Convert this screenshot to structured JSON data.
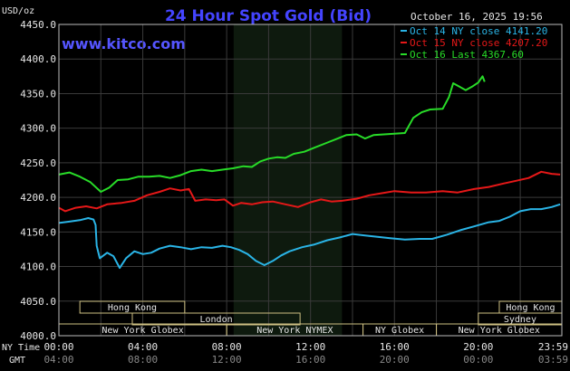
{
  "colors": {
    "background": "#000000",
    "title": "#4444ff",
    "site": "#5555ff",
    "text": "#e6e6e6",
    "grid": "#3a3a3a",
    "nymex_shade": "#0e1a0e",
    "session_fill": "#cdbf82",
    "session_text": "#000000",
    "oct14": "#2ab4e6",
    "oct15": "#e61818",
    "oct16": "#28dc28"
  },
  "chart_data": {
    "type": "line",
    "title": "24 Hour Spot Gold (Bid)",
    "site": "www.kitco.com",
    "timestamp": "October 16, 2025 19:56",
    "ylabel": "USD/oz",
    "ylim": [
      4000,
      4450
    ],
    "y_ticks": [
      "4450.0",
      "4400.0",
      "4350.0",
      "4300.0",
      "4250.0",
      "4200.0",
      "4150.0",
      "4100.0",
      "4050.0",
      "4000.0"
    ],
    "x_row_ny_label": "NY Time",
    "x_row_gmt_label": "GMT",
    "x_ticks_ny": [
      "00:00",
      "04:00",
      "08:00",
      "12:00",
      "16:00",
      "20:00",
      "23:59"
    ],
    "x_ticks_gmt": [
      "04:00",
      "08:00",
      "12:00",
      "16:00",
      "20:00",
      "00:00",
      "03:59"
    ],
    "x_tick_hours": [
      0,
      4,
      8,
      12,
      16,
      20,
      23.983
    ],
    "grid": true,
    "legend_position": "top-right",
    "nymex_band": [
      8.333,
      13.5
    ],
    "sessions": [
      {
        "label": "Hong Kong",
        "start": 1.0,
        "end": 6.0,
        "row": 0
      },
      {
        "label": "Hong Kong",
        "start": 21.0,
        "end": 24.0,
        "row": 0
      },
      {
        "label": "London",
        "start": 3.5,
        "end": 11.5,
        "row": 1
      },
      {
        "label": "Sydney",
        "start": 20.0,
        "end": 24.0,
        "row": 1
      },
      {
        "label": "New York Globex",
        "start": 0.0,
        "end": 8.0,
        "row": 2
      },
      {
        "label": "New York NYMEX",
        "start": 8.0,
        "end": 14.5,
        "row": 2
      },
      {
        "label": "NY Globex",
        "start": 14.5,
        "end": 18.0,
        "row": 2
      },
      {
        "label": "New York Globex",
        "start": 18.0,
        "end": 24.0,
        "row": 2
      }
    ],
    "series": [
      {
        "name": "Oct 14 NY close 4141.20",
        "color_key": "oct14",
        "points": [
          [
            0,
            4163
          ],
          [
            0.5,
            4165
          ],
          [
            1,
            4167
          ],
          [
            1.4,
            4170
          ],
          [
            1.65,
            4168
          ],
          [
            1.75,
            4160
          ],
          [
            1.8,
            4130
          ],
          [
            1.95,
            4112
          ],
          [
            2.3,
            4120
          ],
          [
            2.6,
            4115
          ],
          [
            2.9,
            4098
          ],
          [
            3.2,
            4112
          ],
          [
            3.6,
            4122
          ],
          [
            4,
            4118
          ],
          [
            4.4,
            4120
          ],
          [
            4.8,
            4126
          ],
          [
            5.3,
            4130
          ],
          [
            5.8,
            4128
          ],
          [
            6.3,
            4125
          ],
          [
            6.8,
            4128
          ],
          [
            7.3,
            4127
          ],
          [
            7.8,
            4130
          ],
          [
            8.2,
            4128
          ],
          [
            8.6,
            4124
          ],
          [
            9,
            4118
          ],
          [
            9.4,
            4108
          ],
          [
            9.8,
            4102
          ],
          [
            10.2,
            4108
          ],
          [
            10.6,
            4116
          ],
          [
            11,
            4122
          ],
          [
            11.6,
            4128
          ],
          [
            12.2,
            4132
          ],
          [
            12.8,
            4138
          ],
          [
            13.4,
            4142
          ],
          [
            14,
            4147
          ],
          [
            14.6,
            4145
          ],
          [
            15.2,
            4143
          ],
          [
            15.8,
            4141
          ],
          [
            16.5,
            4139
          ],
          [
            17.2,
            4140
          ],
          [
            17.8,
            4140
          ],
          [
            18.5,
            4146
          ],
          [
            19.2,
            4153
          ],
          [
            19.8,
            4158
          ],
          [
            20.5,
            4164
          ],
          [
            21,
            4166
          ],
          [
            21.5,
            4172
          ],
          [
            22,
            4180
          ],
          [
            22.5,
            4183
          ],
          [
            23,
            4183
          ],
          [
            23.5,
            4186
          ],
          [
            23.9,
            4190
          ]
        ]
      },
      {
        "name": "Oct 15 NY close 4207.20",
        "color_key": "oct15",
        "points": [
          [
            0,
            4185
          ],
          [
            0.3,
            4180
          ],
          [
            0.8,
            4185
          ],
          [
            1.3,
            4187
          ],
          [
            1.8,
            4184
          ],
          [
            2.3,
            4190
          ],
          [
            3,
            4192
          ],
          [
            3.6,
            4195
          ],
          [
            4.2,
            4203
          ],
          [
            4.8,
            4208
          ],
          [
            5.3,
            4213
          ],
          [
            5.8,
            4210
          ],
          [
            6.2,
            4212
          ],
          [
            6.5,
            4195
          ],
          [
            7,
            4197
          ],
          [
            7.5,
            4196
          ],
          [
            7.9,
            4197
          ],
          [
            8.3,
            4188
          ],
          [
            8.7,
            4192
          ],
          [
            9.2,
            4190
          ],
          [
            9.7,
            4193
          ],
          [
            10.2,
            4194
          ],
          [
            10.8,
            4190
          ],
          [
            11.4,
            4186
          ],
          [
            12,
            4193
          ],
          [
            12.5,
            4197
          ],
          [
            13,
            4194
          ],
          [
            13.5,
            4195
          ],
          [
            14.2,
            4198
          ],
          [
            14.8,
            4203
          ],
          [
            15.4,
            4206
          ],
          [
            16,
            4209
          ],
          [
            16.8,
            4207
          ],
          [
            17.5,
            4207
          ],
          [
            18.3,
            4209
          ],
          [
            19,
            4207
          ],
          [
            19.8,
            4212
          ],
          [
            20.5,
            4215
          ],
          [
            21.2,
            4220
          ],
          [
            21.8,
            4224
          ],
          [
            22.4,
            4228
          ],
          [
            23,
            4237
          ],
          [
            23.5,
            4234
          ],
          [
            23.9,
            4233
          ]
        ]
      },
      {
        "name": "Oct 16 Last 4367.60",
        "color_key": "oct16",
        "points": [
          [
            0,
            4233
          ],
          [
            0.5,
            4236
          ],
          [
            1,
            4230
          ],
          [
            1.5,
            4222
          ],
          [
            2,
            4208
          ],
          [
            2.4,
            4214
          ],
          [
            2.8,
            4225
          ],
          [
            3.3,
            4226
          ],
          [
            3.8,
            4230
          ],
          [
            4.3,
            4230
          ],
          [
            4.8,
            4231
          ],
          [
            5.3,
            4228
          ],
          [
            5.8,
            4232
          ],
          [
            6.3,
            4238
          ],
          [
            6.8,
            4240
          ],
          [
            7.3,
            4238
          ],
          [
            7.8,
            4240
          ],
          [
            8.3,
            4242
          ],
          [
            8.8,
            4245
          ],
          [
            9.2,
            4244
          ],
          [
            9.6,
            4252
          ],
          [
            10,
            4256
          ],
          [
            10.4,
            4258
          ],
          [
            10.8,
            4257
          ],
          [
            11.2,
            4263
          ],
          [
            11.7,
            4266
          ],
          [
            12.2,
            4272
          ],
          [
            12.7,
            4278
          ],
          [
            13.2,
            4284
          ],
          [
            13.7,
            4290
          ],
          [
            14.2,
            4291
          ],
          [
            14.6,
            4285
          ],
          [
            15,
            4290
          ],
          [
            15.5,
            4291
          ],
          [
            16,
            4292
          ],
          [
            16.5,
            4293
          ],
          [
            16.9,
            4315
          ],
          [
            17.3,
            4323
          ],
          [
            17.7,
            4327
          ],
          [
            18.3,
            4328
          ],
          [
            18.6,
            4345
          ],
          [
            18.8,
            4365
          ],
          [
            19.1,
            4360
          ],
          [
            19.4,
            4355
          ],
          [
            19.7,
            4360
          ],
          [
            20,
            4366
          ],
          [
            20.2,
            4375
          ],
          [
            20.3,
            4367
          ]
        ]
      }
    ]
  }
}
